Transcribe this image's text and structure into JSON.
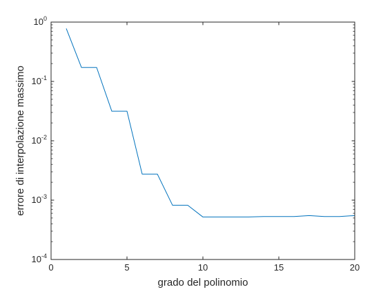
{
  "chart_data": {
    "type": "line",
    "title": "",
    "xlabel": "grado del polinomio",
    "ylabel": "errore di interpolazione massimo",
    "xlim": [
      0,
      20
    ],
    "ylim": [
      0.0001,
      1
    ],
    "yscale": "log",
    "grid": false,
    "x_ticks": [
      0,
      5,
      10,
      15,
      20
    ],
    "x_tick_labels": [
      "0",
      "5",
      "10",
      "15",
      "20"
    ],
    "y_ticks": [
      0.0001,
      0.001,
      0.01,
      0.1,
      1
    ],
    "y_tick_labels": [
      {
        "base": "10",
        "exp": "-4"
      },
      {
        "base": "10",
        "exp": "-3"
      },
      {
        "base": "10",
        "exp": "-2"
      },
      {
        "base": "10",
        "exp": "-1"
      },
      {
        "base": "10",
        "exp": "0"
      }
    ],
    "series": [
      {
        "color": "#0072bd",
        "x": [
          1,
          2,
          3,
          4,
          5,
          6,
          7,
          8,
          9,
          10,
          11,
          12,
          13,
          14,
          15,
          16,
          17,
          18,
          19,
          20
        ],
        "y": [
          0.78,
          0.172,
          0.172,
          0.0315,
          0.0315,
          0.00275,
          0.00275,
          0.00082,
          0.00082,
          0.00052,
          0.00052,
          0.00052,
          0.00052,
          0.00053,
          0.00053,
          0.00053,
          0.00055,
          0.00053,
          0.00053,
          0.00055
        ]
      }
    ]
  }
}
